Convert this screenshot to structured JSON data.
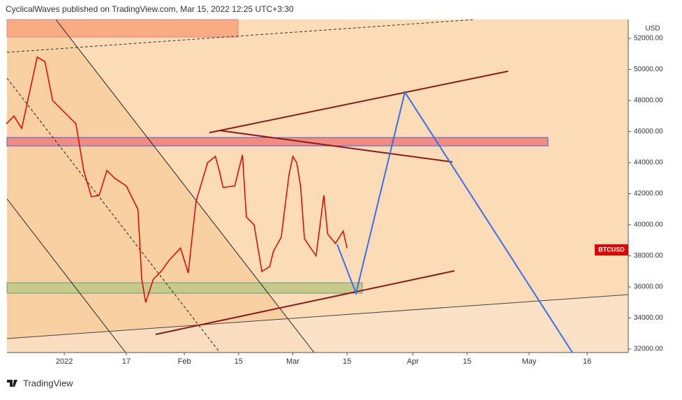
{
  "header": "CyclicalWaves published on TradingView.com, Mar 15, 2022 12:25 UTC+3:30",
  "footer": "TradingView",
  "chart_data": {
    "type": "line",
    "currency": "USD",
    "symbol": "BTCUSD",
    "series": [
      {
        "name": "BTCUSD",
        "color": "#e00000",
        "x": [
          -15,
          -13,
          -11,
          -9,
          -7,
          -5,
          -3,
          -1,
          1,
          3,
          5,
          7,
          9,
          11,
          13,
          16,
          19,
          20,
          21,
          23,
          25,
          27,
          30,
          32,
          34,
          37,
          39,
          40,
          41,
          44,
          46,
          47,
          49,
          51,
          53,
          54,
          56,
          58,
          59,
          60,
          61,
          62,
          65,
          67,
          68,
          70,
          72,
          73
        ],
        "values": [
          46500,
          47000,
          46200,
          48500,
          50800,
          50500,
          48000,
          47500,
          47000,
          46500,
          43500,
          41800,
          41900,
          43500,
          43000,
          42500,
          41000,
          36500,
          35000,
          36500,
          37000,
          37700,
          38500,
          36900,
          41500,
          44000,
          44400,
          43500,
          42400,
          42500,
          44500,
          40500,
          40000,
          37000,
          37300,
          38300,
          39200,
          43200,
          44400,
          44000,
          42500,
          39100,
          38000,
          41900,
          39400,
          38800,
          39600,
          38500
        ]
      }
    ],
    "xlim": [
      -14.8,
      145.6
    ],
    "ylim": [
      31775,
      53213
    ],
    "xticks": [
      {
        "value": 0,
        "label": "2022"
      },
      {
        "value": 16,
        "label": "17"
      },
      {
        "value": 31,
        "label": "Feb"
      },
      {
        "value": 45,
        "label": "15"
      },
      {
        "value": 59,
        "label": "Mar"
      },
      {
        "value": 73,
        "label": "15"
      },
      {
        "value": 90,
        "label": "Apr"
      },
      {
        "value": 104,
        "label": "15"
      },
      {
        "value": 120,
        "label": "May"
      },
      {
        "value": 135,
        "label": "16"
      }
    ],
    "yticks": [
      {
        "value": 32000,
        "label": "32000.00"
      },
      {
        "value": 34000,
        "label": "34000.00"
      },
      {
        "value": 36000,
        "label": "36000.00"
      },
      {
        "value": 38000,
        "label": "38000.00"
      },
      {
        "value": 40000,
        "label": "40000.00"
      },
      {
        "value": 42000,
        "label": "42000.00"
      },
      {
        "value": 44000,
        "label": "44000.00"
      },
      {
        "value": 46000,
        "label": "46000.00"
      },
      {
        "value": 48000,
        "label": "48000.00"
      },
      {
        "value": 50000,
        "label": "50000.00"
      },
      {
        "value": 52000,
        "label": "52000.00"
      }
    ]
  }
}
